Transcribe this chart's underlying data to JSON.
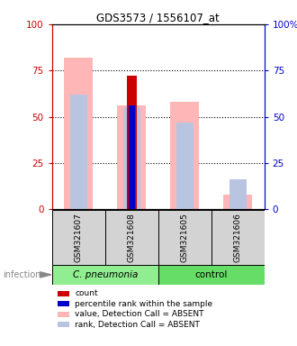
{
  "title": "GDS3573 / 1556107_at",
  "samples": [
    "GSM321607",
    "GSM321608",
    "GSM321605",
    "GSM321606"
  ],
  "ylim": [
    0,
    100
  ],
  "yticks": [
    0,
    25,
    50,
    75,
    100
  ],
  "left_axis_color": "#cc0000",
  "right_axis_color": "#0000cc",
  "count_values": [
    0,
    72,
    0,
    0
  ],
  "count_color": "#cc0000",
  "percentile_values": [
    0,
    56,
    0,
    0
  ],
  "percentile_color": "#0000cc",
  "value_absent": [
    82,
    56,
    58,
    8
  ],
  "value_absent_color": "#ffb6b6",
  "rank_absent": [
    62,
    55,
    47,
    16
  ],
  "rank_absent_color": "#b8c4e0",
  "sample_box_color": "#d3d3d3",
  "cpneumonia_color": "#90ee90",
  "control_color": "#66dd66",
  "legend_items": [
    {
      "color": "#cc0000",
      "label": "count"
    },
    {
      "color": "#0000cc",
      "label": "percentile rank within the sample"
    },
    {
      "color": "#ffb6b6",
      "label": "value, Detection Call = ABSENT"
    },
    {
      "color": "#b8c4e0",
      "label": "rank, Detection Call = ABSENT"
    }
  ],
  "infection_label": "infection",
  "dotted_grid": [
    25,
    50,
    75
  ]
}
